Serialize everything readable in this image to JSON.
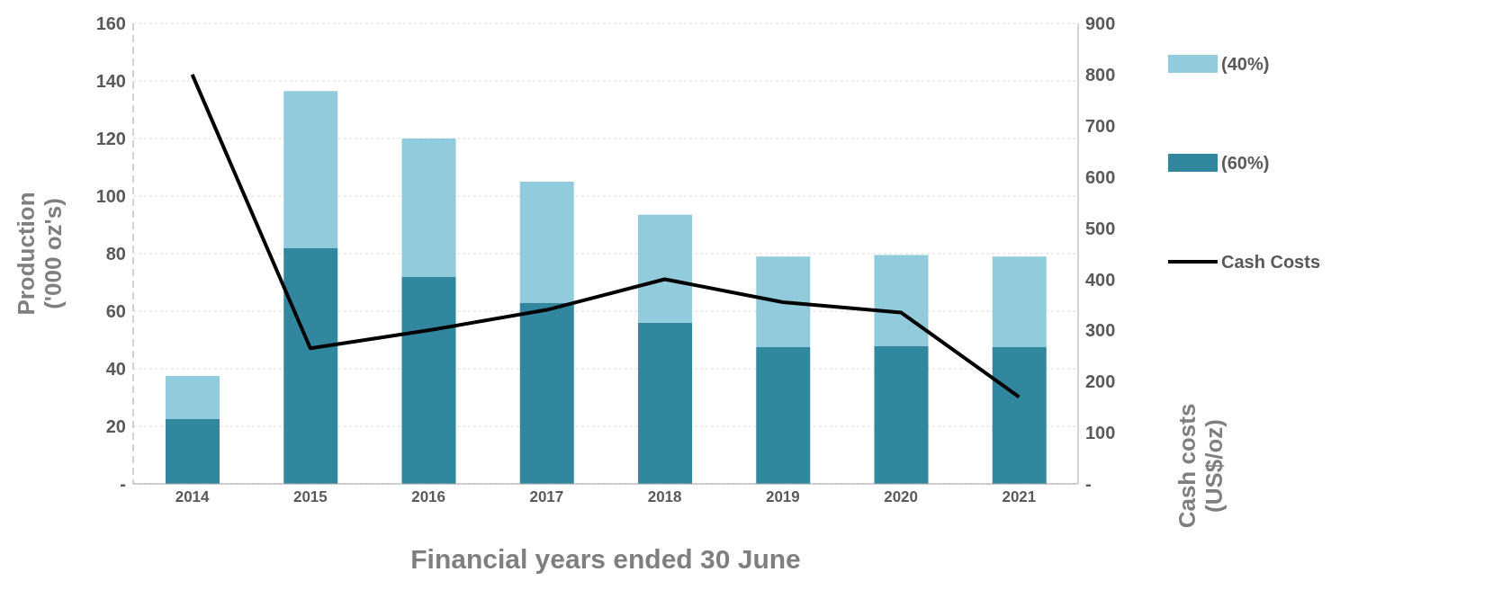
{
  "chart_data": {
    "type": "bar",
    "stacked": true,
    "xlabel": "Financial years ended 30 June",
    "ylabel": "Production\n('000 oz's)",
    "y2label": "Cash costs\n(US$/oz)",
    "categories": [
      "2014",
      "2015",
      "2016",
      "2017",
      "2018",
      "2019",
      "2020",
      "2021"
    ],
    "series": [
      {
        "name": "(60%)",
        "color": "#31879e",
        "values": [
          22.5,
          82,
          72,
          63,
          56,
          47.5,
          48,
          47.5
        ]
      },
      {
        "name": "(40%)",
        "color": "#92cbdc",
        "values": [
          15,
          54.5,
          48,
          42,
          37.5,
          31.5,
          31.5,
          31.5
        ]
      },
      {
        "name": "Cash Costs",
        "type": "line",
        "axis": "y2",
        "color": "#000000",
        "values": [
          800,
          265,
          300,
          340,
          400,
          355,
          335,
          170
        ]
      }
    ],
    "ylim": [
      0,
      160
    ],
    "yticks": [
      {
        "value": 0,
        "label": "-"
      },
      20,
      40,
      60,
      80,
      100,
      120,
      140,
      160
    ],
    "y2lim": [
      0,
      900
    ],
    "y2ticks": [
      {
        "value": 0,
        "label": "-"
      },
      100,
      200,
      300,
      400,
      500,
      600,
      700,
      800,
      900
    ],
    "grid": "y",
    "legend": "right",
    "marker": "none",
    "line_style": "solid"
  }
}
